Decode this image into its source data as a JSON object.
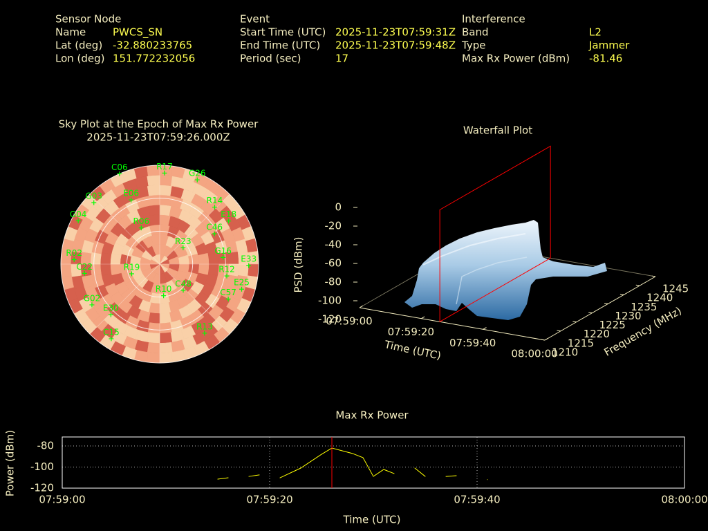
{
  "header": {
    "sensor": {
      "title": "Sensor Node",
      "rows": [
        [
          "Name",
          "PWCS_SN"
        ],
        [
          "Lat (deg)",
          -32.880233765
        ],
        [
          "Lon (deg)",
          151.772232056
        ]
      ]
    },
    "event": {
      "title": "Event",
      "rows": [
        [
          "Start Time (UTC)",
          "2025-11-23T07:59:31Z"
        ],
        [
          "End Time (UTC)",
          "2025-11-23T07:59:48Z"
        ],
        [
          "Period (sec)",
          17
        ]
      ]
    },
    "interference": {
      "title": "Interference",
      "rows": [
        [
          "Band",
          "L2"
        ],
        [
          "Type",
          "Jammer"
        ],
        [
          "Max Rx Power (dBm)",
          -81.46
        ]
      ]
    }
  },
  "chart_data": [
    {
      "type": "polar",
      "title": "Sky Plot at the Epoch of Max Rx Power",
      "subtitle": "2025-11-23T07:59:26.000Z",
      "color": "#00ff00",
      "elticks": [
        0,
        30,
        60
      ],
      "points": [
        {
          "name": "G26",
          "az": 24,
          "el": 6
        },
        {
          "name": "R17",
          "az": 3,
          "el": 7
        },
        {
          "name": "C06",
          "az": 336,
          "el": 0
        },
        {
          "name": "R14",
          "az": 44,
          "el": 18
        },
        {
          "name": "E18",
          "az": 58,
          "el": 16
        },
        {
          "name": "C46",
          "az": 61,
          "el": 33
        },
        {
          "name": "G16",
          "az": 84,
          "el": 32
        },
        {
          "name": "E33",
          "az": 91,
          "el": 9
        },
        {
          "name": "R12",
          "az": 100,
          "el": 28
        },
        {
          "name": "E25",
          "az": 107,
          "el": 12
        },
        {
          "name": "C57",
          "az": 117,
          "el": 20
        },
        {
          "name": "R13",
          "az": 147,
          "el": 15
        },
        {
          "name": "C15",
          "az": 213,
          "el": 9
        },
        {
          "name": "E30",
          "az": 224,
          "el": 26
        },
        {
          "name": "G02",
          "az": 239,
          "el": 18
        },
        {
          "name": "C22",
          "az": 263,
          "el": 21
        },
        {
          "name": "R02",
          "az": 273,
          "el": 12
        },
        {
          "name": "G04",
          "az": 298,
          "el": 6
        },
        {
          "name": "G03",
          "az": 313,
          "el": 8
        },
        {
          "name": "E06",
          "az": 336,
          "el": 26
        },
        {
          "name": "R19",
          "az": 251,
          "el": 63
        },
        {
          "name": "R10",
          "az": 173,
          "el": 61
        },
        {
          "name": "C48",
          "az": 138,
          "el": 58
        },
        {
          "name": "R23",
          "az": 55,
          "el": 64
        },
        {
          "name": "R06",
          "az": 333,
          "el": 53
        }
      ]
    },
    {
      "type": "surface",
      "title": "Waterfall Plot",
      "xlabel": "Time (UTC)",
      "ylabel": "Frequency (MHz)",
      "zlabel": "PSD (dBm)",
      "xlim": [
        "07:59:00",
        "08:00:00"
      ],
      "xticks": [
        "07:59:00",
        "07:59:20",
        "07:59:40",
        "08:00:00"
      ],
      "ylim": [
        1210,
        1245
      ],
      "yticks": [
        1210,
        1215,
        1220,
        1225,
        1230,
        1235,
        1240,
        1245
      ],
      "zlim": [
        -120,
        0
      ],
      "zticks": [
        0,
        -20,
        -40,
        -60,
        -80,
        -100,
        -120
      ],
      "marker_x": "07:59:26",
      "marker_color": "#ff0000"
    },
    {
      "type": "line",
      "title": "Max Rx Power",
      "xlabel": "Time (UTC)",
      "ylabel": "Power (dBm)",
      "xlim": [
        "07:59:00",
        "08:00:00"
      ],
      "xticks": [
        "07:59:00",
        "07:59:20",
        "07:59:40",
        "08:00:00"
      ],
      "ylim": [
        -120,
        -71.5
      ],
      "yticks": [
        -80,
        -100,
        -120
      ],
      "grid": true,
      "color": "#ffff00",
      "marker_x": "07:59:26",
      "marker_color": "#ff0000",
      "x": [
        "07:59:15",
        "07:59:16",
        "07:59:17",
        "07:59:18",
        "07:59:19",
        "07:59:20",
        "07:59:21",
        "07:59:23",
        "07:59:25",
        "07:59:26",
        "07:59:27",
        "07:59:28",
        "07:59:29",
        "07:59:30",
        "07:59:31",
        "07:59:32",
        "07:59:33",
        "07:59:34",
        "07:59:35",
        "07:59:36",
        "07:59:37",
        "07:59:38",
        "07:59:39",
        "07:59:41"
      ],
      "values": [
        -111.5,
        -110.2,
        null,
        -108.9,
        -107.5,
        null,
        -110.2,
        -101,
        -87.9,
        -82,
        -84.6,
        -87.2,
        -91.1,
        -108.9,
        -102.3,
        -106.2,
        null,
        -101,
        -108.9,
        null,
        -108.9,
        -108.2,
        null,
        -112
      ]
    }
  ]
}
